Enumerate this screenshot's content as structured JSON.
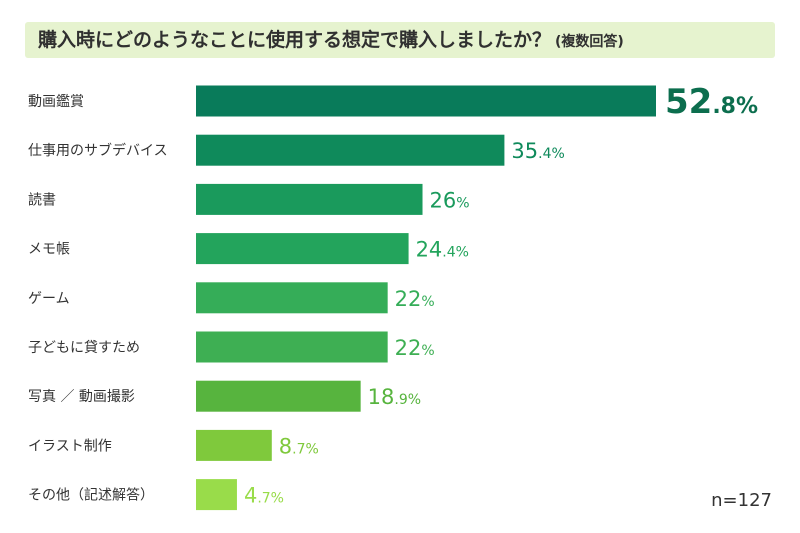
{
  "title": {
    "main": "購入時にどのようなことに使用する想定で購入しましたか？",
    "sub": "(複数回答)"
  },
  "note": "n=127",
  "chart_data": {
    "type": "bar",
    "orientation": "horizontal",
    "title": "購入時にどのようなことに使用する想定で購入しましたか？(複数回答)",
    "unit": "%",
    "categories": [
      "動画鑑賞",
      "仕事用のサブデバイス",
      "読書",
      "メモ帳",
      "ゲーム",
      "子どもに貸すため",
      "写真 ／ 動画撮影",
      "イラスト制作",
      "その他（記述解答）"
    ],
    "values": [
      52.8,
      35.4,
      26,
      24.4,
      22,
      22,
      18.9,
      8.7,
      4.7
    ],
    "value_labels": [
      "52.8%",
      "35.4%",
      "26%",
      "24.4%",
      "22%",
      "22%",
      "18.9%",
      "8.7%",
      "4.7%"
    ],
    "colors": [
      "#097b5a",
      "#0f8a5b",
      "#1a9a5c",
      "#23a45c",
      "#35ad58",
      "#3eaf53",
      "#57b43e",
      "#7fc93c",
      "#99dc4a"
    ],
    "grid": false,
    "legend": "none"
  }
}
